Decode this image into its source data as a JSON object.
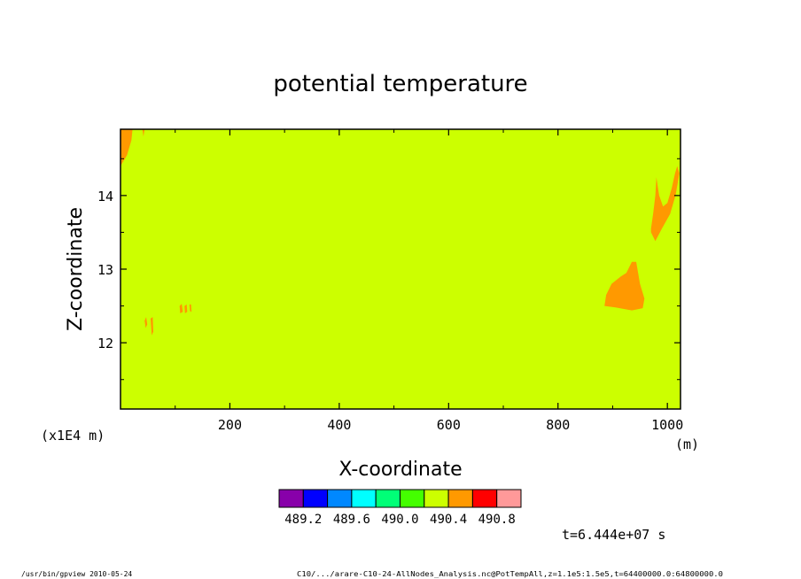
{
  "chart_data": {
    "type": "heatmap",
    "title": "potential temperature",
    "xlabel": "X-coordinate",
    "ylabel": "Z-coordinate",
    "x_unit": "(m)",
    "y_unit": "(x1E4 m)",
    "xlim": [
      0,
      1024
    ],
    "ylim": [
      11.1,
      14.9
    ],
    "x_ticks": [
      {
        "value": 200,
        "label": "200"
      },
      {
        "value": 400,
        "label": "400"
      },
      {
        "value": 600,
        "label": "600"
      },
      {
        "value": 800,
        "label": "800"
      },
      {
        "value": 1000,
        "label": "1000"
      }
    ],
    "y_ticks": [
      {
        "value": 12,
        "label": "12"
      },
      {
        "value": 13,
        "label": "13"
      },
      {
        "value": 14,
        "label": "14"
      }
    ],
    "background_level": "490.2–490.4",
    "background_color": "#ccff00",
    "regions": [
      {
        "level": "490.4–490.6",
        "color": "#ff9900",
        "polygon": [
          [
            0,
            14.9
          ],
          [
            22,
            14.9
          ],
          [
            20,
            14.75
          ],
          [
            12,
            14.55
          ],
          [
            4,
            14.45
          ],
          [
            0,
            14.4
          ]
        ]
      },
      {
        "level": "490.4–490.6",
        "color": "#ff9900",
        "polygon": [
          [
            40,
            14.9
          ],
          [
            44,
            14.9
          ],
          [
            42,
            14.8
          ]
        ]
      },
      {
        "level": "490.4–490.6",
        "color": "#ff9900",
        "polygon": [
          [
            885,
            12.5
          ],
          [
            888,
            12.65
          ],
          [
            898,
            12.8
          ],
          [
            915,
            12.9
          ],
          [
            925,
            12.95
          ],
          [
            935,
            13.1
          ],
          [
            943,
            13.1
          ],
          [
            950,
            12.8
          ],
          [
            958,
            12.6
          ],
          [
            955,
            12.47
          ],
          [
            935,
            12.44
          ],
          [
            905,
            12.48
          ],
          [
            885,
            12.5
          ]
        ]
      },
      {
        "level": "490.4–490.6",
        "color": "#ff9900",
        "polygon": [
          [
            970,
            13.55
          ],
          [
            974,
            13.75
          ],
          [
            978,
            14.0
          ],
          [
            980,
            14.25
          ],
          [
            985,
            14.0
          ],
          [
            992,
            13.85
          ],
          [
            1000,
            13.9
          ],
          [
            1008,
            14.1
          ],
          [
            1014,
            14.3
          ],
          [
            1018,
            14.4
          ],
          [
            1022,
            14.3
          ],
          [
            1015,
            14.0
          ],
          [
            1005,
            13.75
          ],
          [
            990,
            13.55
          ],
          [
            978,
            13.38
          ],
          [
            970,
            13.5
          ]
        ]
      },
      {
        "level": "490.4–490.6",
        "color": "#ff9900",
        "polygon": [
          [
            44,
            12.3
          ],
          [
            47,
            12.35
          ],
          [
            49,
            12.25
          ],
          [
            46,
            12.2
          ]
        ]
      },
      {
        "level": "490.4–490.6",
        "color": "#ff9900",
        "polygon": [
          [
            55,
            12.33
          ],
          [
            59,
            12.35
          ],
          [
            60,
            12.15
          ],
          [
            57,
            12.1
          ]
        ]
      },
      {
        "level": "490.4–490.6",
        "color": "#ff9900",
        "polygon": [
          [
            108,
            12.5
          ],
          [
            112,
            12.53
          ],
          [
            114,
            12.42
          ],
          [
            109,
            12.4
          ]
        ]
      },
      {
        "level": "490.4–490.6",
        "color": "#ff9900",
        "polygon": [
          [
            117,
            12.5
          ],
          [
            121,
            12.52
          ],
          [
            122,
            12.42
          ],
          [
            118,
            12.4
          ]
        ]
      },
      {
        "level": "490.4–490.6",
        "color": "#ff9900",
        "polygon": [
          [
            126,
            12.52
          ],
          [
            129,
            12.52
          ],
          [
            130,
            12.42
          ],
          [
            127,
            12.43
          ]
        ]
      }
    ],
    "colorbar": {
      "colors": [
        "#8800aa",
        "#0000ff",
        "#0088ff",
        "#00ffff",
        "#00ff77",
        "#44ff00",
        "#ccff00",
        "#ff9900",
        "#ff0000",
        "#ff9999"
      ],
      "tick_labels": [
        "489.2",
        "489.6",
        "490.0",
        "490.4",
        "490.8"
      ]
    },
    "time_label": "t=6.444e+07 s"
  },
  "footer": {
    "left": "/usr/bin/gpview   2010-05-24",
    "right": "C10/.../arare-C10-24-AllNodes_Analysis.nc@PotTempAll,z=1.1e5:1.5e5,t=64400000.0:64800000.0"
  }
}
